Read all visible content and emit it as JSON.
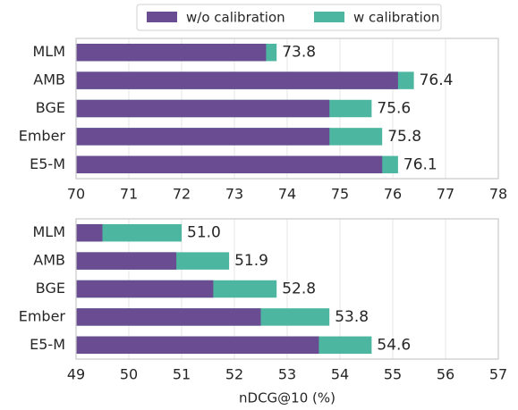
{
  "chart_data": [
    {
      "type": "bar",
      "orientation": "horizontal",
      "categories": [
        "MLM",
        "AMB",
        "BGE",
        "Ember",
        "E5-M"
      ],
      "series": [
        {
          "name": "w/o calibration",
          "color": "#6a4c93",
          "values": [
            73.6,
            76.1,
            74.8,
            74.8,
            75.8
          ]
        },
        {
          "name": "w calibration",
          "color": "#4db6a0",
          "values": [
            73.8,
            76.4,
            75.6,
            75.8,
            76.1
          ],
          "value_labels": [
            "73.8",
            "76.4",
            "75.6",
            "75.8",
            "76.1"
          ]
        }
      ],
      "xlim": [
        70,
        78
      ],
      "xticks": [
        70,
        71,
        72,
        73,
        74,
        75,
        76,
        77,
        78
      ],
      "grid": true,
      "legend": "top"
    },
    {
      "type": "bar",
      "orientation": "horizontal",
      "categories": [
        "MLM",
        "AMB",
        "BGE",
        "Ember",
        "E5-M"
      ],
      "series": [
        {
          "name": "w/o calibration",
          "color": "#6a4c93",
          "values": [
            49.5,
            50.9,
            51.6,
            52.5,
            53.6
          ]
        },
        {
          "name": "w calibration",
          "color": "#4db6a0",
          "values": [
            51.0,
            51.9,
            52.8,
            53.8,
            54.6
          ],
          "value_labels": [
            "51.0",
            "51.9",
            "52.8",
            "53.8",
            "54.6"
          ]
        }
      ],
      "xlim": [
        49,
        57
      ],
      "xticks": [
        49,
        50,
        51,
        52,
        53,
        54,
        55,
        56,
        57
      ],
      "grid": true,
      "xlabel": "nDCG@10 (%)"
    }
  ]
}
